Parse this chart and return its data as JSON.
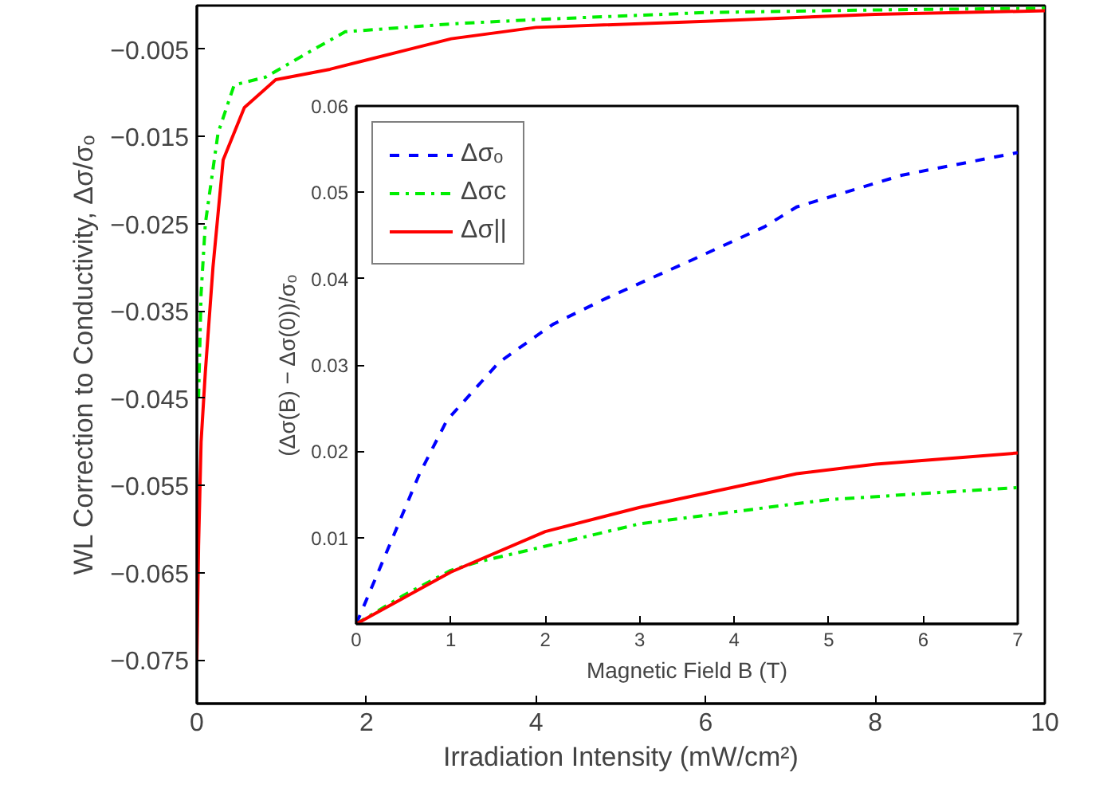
{
  "chart_data": [
    {
      "type": "line",
      "xlabel": "Irradiation Intensity (mW/cm²)",
      "ylabel": "WL Correction to Conductivity, Δσ/σₒ",
      "xlim": [
        0,
        10
      ],
      "ylim": [
        -0.08,
        0
      ],
      "xticks": [
        0,
        2,
        4,
        6,
        8,
        10
      ],
      "yticks": [
        -0.075,
        -0.065,
        -0.055,
        -0.045,
        -0.035,
        -0.025,
        -0.015,
        -0.005
      ],
      "grid": false,
      "legend": false,
      "series": [
        {
          "color": "#00ee00",
          "line_style": "dashdot",
          "x": [
            0.02,
            0.05,
            0.1,
            0.25,
            0.44,
            0.81,
            1.31,
            1.75,
            3,
            4,
            6,
            8,
            10
          ],
          "values": [
            -0.045,
            -0.033,
            -0.025,
            -0.0146,
            -0.0091,
            -0.0082,
            -0.0054,
            -0.003,
            -0.0021,
            -0.0016,
            -0.0008,
            -0.0005,
            -0.0003
          ]
        },
        {
          "color": "#ff0000",
          "line_style": "solid",
          "x": [
            0,
            0.02,
            0.05,
            0.1,
            0.19,
            0.31,
            0.56,
            0.93,
            1.57,
            2.06,
            3,
            4,
            6,
            8,
            10
          ],
          "values": [
            -0.075,
            -0.062,
            -0.05,
            -0.042,
            -0.03,
            -0.0177,
            -0.0117,
            -0.0085,
            -0.0073,
            -0.0061,
            -0.0038,
            -0.0025,
            -0.0018,
            -0.001,
            -0.0006
          ]
        }
      ]
    },
    {
      "type": "line",
      "xlabel": "Magnetic Field B (T)",
      "ylabel": "(Δσ(B) − Δσ(0))/σₒ",
      "xlim": [
        0,
        7
      ],
      "ylim": [
        0,
        0.06
      ],
      "xticks": [
        0,
        1,
        2,
        3,
        4,
        5,
        6,
        7
      ],
      "yticks": [
        0.01,
        0.02,
        0.03,
        0.04,
        0.05,
        0.06
      ],
      "grid": false,
      "legend": "top left",
      "series": [
        {
          "name": "Δσₒ",
          "color": "#0000ff",
          "line_style": "dashed",
          "x": [
            0,
            0.29,
            0.67,
            0.96,
            1.51,
            2.08,
            2.64,
            3.48,
            4.32,
            4.66,
            5.78,
            7
          ],
          "values": [
            0,
            0.0075,
            0.0174,
            0.0236,
            0.0303,
            0.0347,
            0.0377,
            0.0418,
            0.046,
            0.0483,
            0.052,
            0.0546
          ]
        },
        {
          "name": "Δσc",
          "color": "#00ee00",
          "line_style": "dashdot",
          "x": [
            0,
            0.5,
            1,
            1.3,
            2,
            3,
            5,
            7
          ],
          "values": [
            0,
            0.0033,
            0.0062,
            0.0072,
            0.009,
            0.0116,
            0.0144,
            0.0158
          ]
        },
        {
          "name": "Δσ||",
          "color": "#ff0000",
          "line_style": "solid",
          "x": [
            0,
            0.5,
            1,
            2,
            3,
            4.66,
            5.5,
            7
          ],
          "values": [
            0,
            0.003,
            0.006,
            0.0107,
            0.0135,
            0.0174,
            0.0185,
            0.0198
          ]
        }
      ]
    }
  ]
}
